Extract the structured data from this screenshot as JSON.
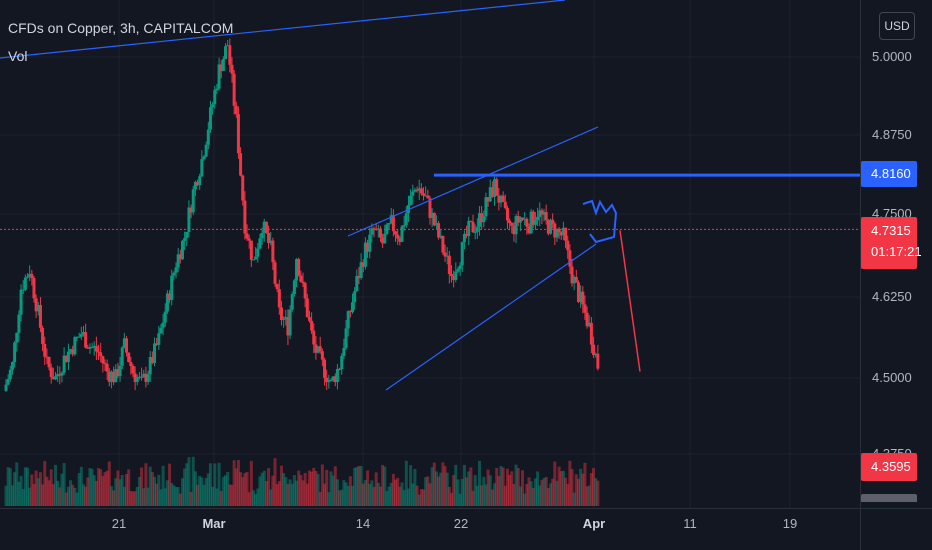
{
  "header": {
    "title": "CFDs on Copper, 3h, CAPITALCOM",
    "volume_label": "Vol"
  },
  "price_axis": {
    "currency": "USD",
    "ticks": [
      "5.0000",
      "4.8750",
      "4.7500",
      "4.6250",
      "4.5000",
      "4.3750"
    ],
    "resistance_label": "4.8160",
    "last_price": "4.7315",
    "countdown": "01:17:21",
    "volume_label": "4.3595"
  },
  "time_axis": {
    "ticks": [
      {
        "label": "21",
        "bold": false
      },
      {
        "label": "Mar",
        "bold": true
      },
      {
        "label": "14",
        "bold": false
      },
      {
        "label": "22",
        "bold": false
      },
      {
        "label": "Apr",
        "bold": true
      },
      {
        "label": "11",
        "bold": false
      },
      {
        "label": "19",
        "bold": false
      }
    ]
  },
  "colors": {
    "background": "#131722",
    "up": "#089981",
    "down": "#f23645",
    "drawing": "#2962ff",
    "grid": "#1e222d"
  },
  "chart_data": {
    "type": "candlestick",
    "title": "CFDs on Copper, 3h, CAPITALCOM",
    "ylim": [
      4.37,
      5.06
    ],
    "resistance": 4.816,
    "last_price": 4.7315,
    "path": [
      4.48,
      4.52,
      4.64,
      4.67,
      4.6,
      4.52,
      4.5,
      4.53,
      4.55,
      4.57,
      4.55,
      4.54,
      4.51,
      4.5,
      4.55,
      4.51,
      4.49,
      4.52,
      4.56,
      4.62,
      4.68,
      4.72,
      4.79,
      4.84,
      4.91,
      4.98,
      5.02,
      4.9,
      4.74,
      4.68,
      4.74,
      4.7,
      4.6,
      4.58,
      4.69,
      4.62,
      4.55,
      4.52,
      4.49,
      4.52,
      4.59,
      4.65,
      4.7,
      4.73,
      4.71,
      4.74,
      4.72,
      4.77,
      4.8,
      4.78,
      4.74,
      4.7,
      4.66,
      4.69,
      4.73,
      4.74,
      4.77,
      4.8,
      4.76,
      4.73,
      4.75,
      4.74,
      4.76,
      4.74,
      4.73,
      4.72,
      4.66,
      4.62,
      4.58,
      4.52
    ],
    "x_start": "Feb 13",
    "x_end": "Apr 6"
  }
}
